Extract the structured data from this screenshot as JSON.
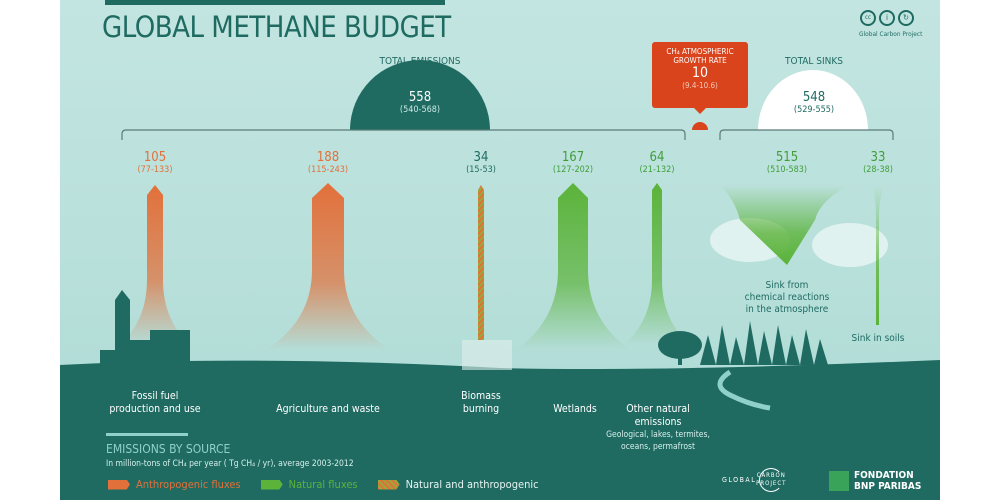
{
  "title": "GLOBAL METHANE BUDGET",
  "license": {
    "label": "Global Carbon Project",
    "icons": [
      "cc-icon",
      "by-icon",
      "sa-icon"
    ]
  },
  "total_emissions": {
    "label": "TOTAL EMISSIONS",
    "value": "558",
    "range": "(540-568)"
  },
  "growth_rate": {
    "label1": "CH₄ ATMOSPHERIC",
    "label2": "GROWTH RATE",
    "value": "10",
    "range": "(9.4-10.6)"
  },
  "total_sinks": {
    "label": "TOTAL SINKS",
    "value": "548",
    "range": "(529-555)"
  },
  "sources": [
    {
      "name": "Fossil fuel production and use",
      "l1": "Fossil fuel",
      "l2": "production and use",
      "value": "105",
      "range": "(77-133)",
      "type": "anthropogenic"
    },
    {
      "name": "Agriculture and waste",
      "l1": "Agriculture and waste",
      "l2": "",
      "value": "188",
      "range": "(115-243)",
      "type": "anthropogenic"
    },
    {
      "name": "Biomass burning",
      "l1": "Biomass",
      "l2": "burning",
      "value": "34",
      "range": "(15-53)",
      "type": "mixed"
    },
    {
      "name": "Wetlands",
      "l1": "Wetlands",
      "l2": "",
      "value": "167",
      "range": "(127-202)",
      "type": "natural"
    },
    {
      "name": "Other natural emissions",
      "l1": "Other natural",
      "l2": "emissions",
      "l3": "Geological, lakes, termites,",
      "l4": "oceans, permafrost",
      "value": "64",
      "range": "(21-132)",
      "type": "natural"
    }
  ],
  "sinks": [
    {
      "l1": "Sink from",
      "l2": "chemical reactions",
      "l3": "in the atmosphere",
      "value": "515",
      "range": "(510-583)"
    },
    {
      "l1": "Sink in soils",
      "value": "33",
      "range": "(28-38)"
    }
  ],
  "legend": {
    "title": "EMISSIONS BY SOURCE",
    "subtitle": "In million-tons of CH₄ per year ( Tg CH₄ / yr), average 2003-2012",
    "items": [
      "Anthropogenic fluxes",
      "Natural fluxes",
      "Natural and anthropogenic"
    ]
  },
  "logos": {
    "gcp1": "GLOBAL",
    "gcp2": "CARBON",
    "gcp3": "PROJECT",
    "bnp1": "FONDATION",
    "bnp2": "BNP PARIBAS"
  },
  "colors": {
    "anthropogenic": "#e2703a",
    "natural": "#5bb33a",
    "dark": "#1f6b62",
    "growth": "#d9441c"
  }
}
